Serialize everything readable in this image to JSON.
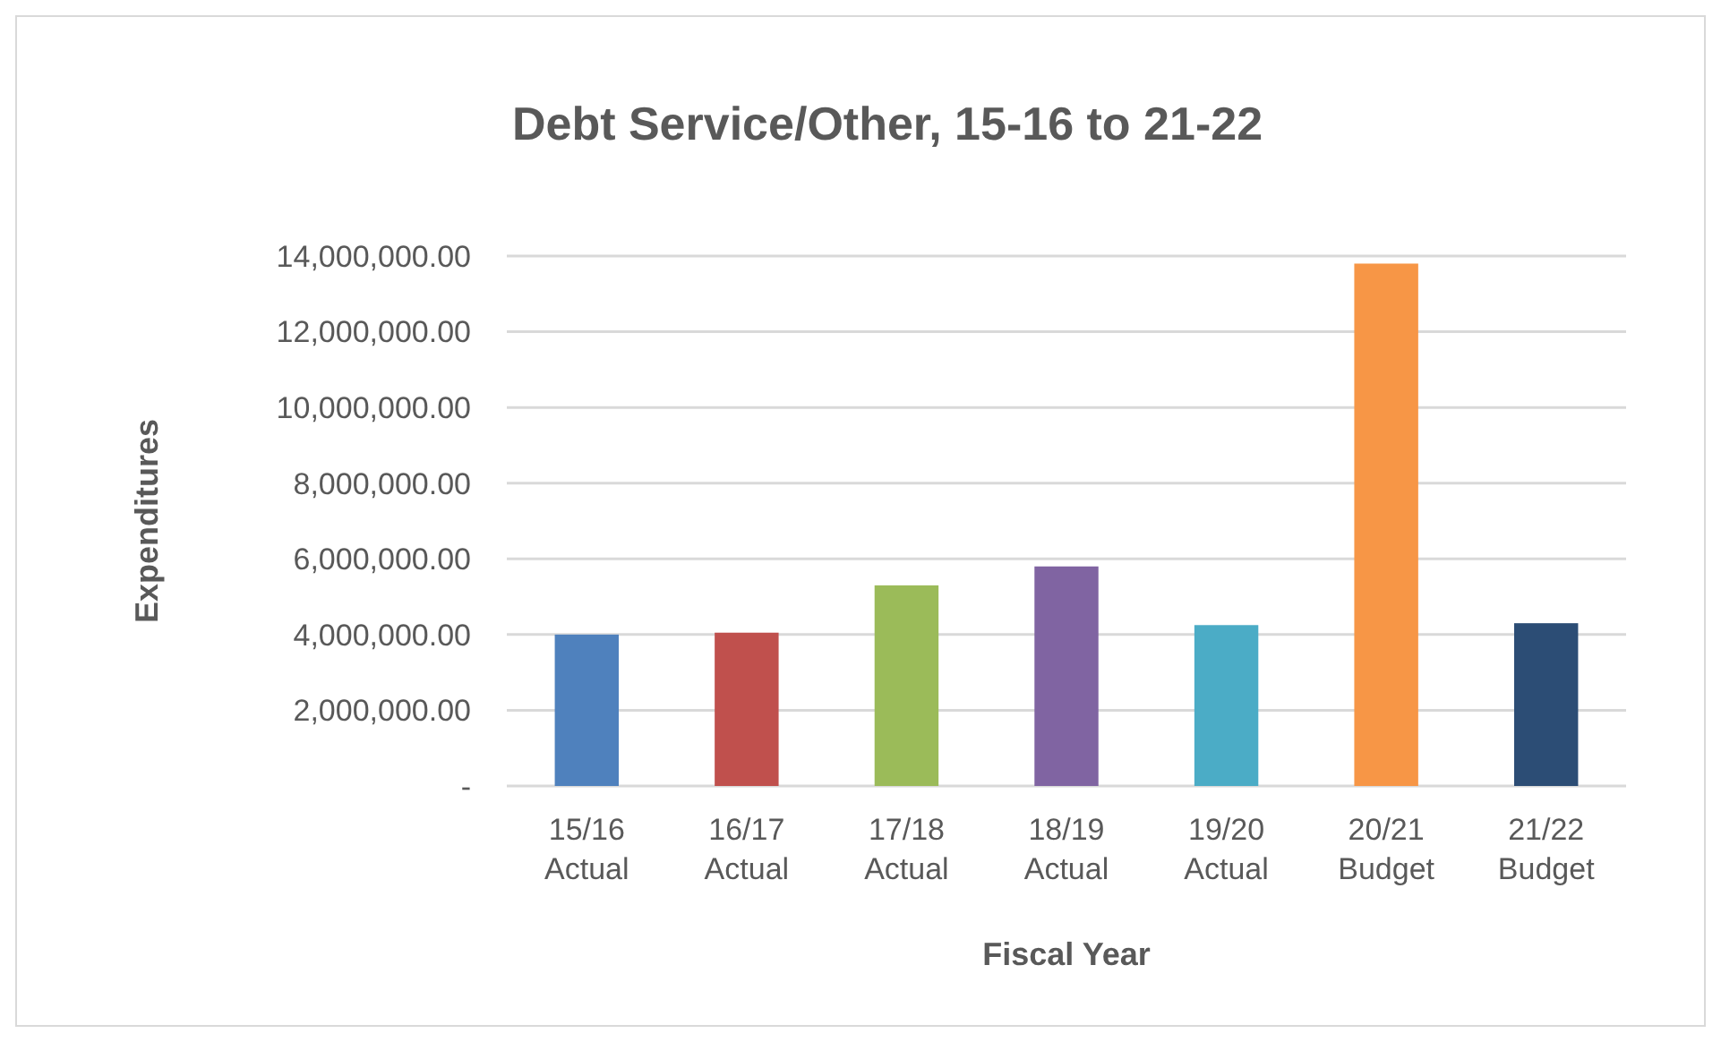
{
  "chart_data": {
    "type": "bar",
    "title": "Debt Service/Other, 15-16 to 21-22",
    "xlabel": "Fiscal Year",
    "ylabel": "Expenditures",
    "categories": [
      "15/16\nActual",
      "16/17\nActual",
      "17/18\nActual",
      "18/19\nActual",
      "19/20\nActual",
      "20/21\nBudget",
      "21/22\nBudget"
    ],
    "values": [
      4000000,
      4050000,
      5300000,
      5800000,
      4250000,
      13800000,
      4300000
    ],
    "colors": [
      "#4f81bd",
      "#c0504d",
      "#9bbb59",
      "#8064a2",
      "#4bacc6",
      "#f79646",
      "#2c4d75"
    ],
    "ylim": [
      0,
      14000000
    ],
    "yticks": [
      {
        "value": 0,
        "label": "-"
      },
      {
        "value": 2000000,
        "label": "2,000,000.00"
      },
      {
        "value": 4000000,
        "label": "4,000,000.00"
      },
      {
        "value": 6000000,
        "label": "6,000,000.00"
      },
      {
        "value": 8000000,
        "label": "8,000,000.00"
      },
      {
        "value": 10000000,
        "label": "10,000,000.00"
      },
      {
        "value": 12000000,
        "label": "12,000,000.00"
      },
      {
        "value": 14000000,
        "label": "14,000,000.00"
      }
    ],
    "grid": "y"
  }
}
